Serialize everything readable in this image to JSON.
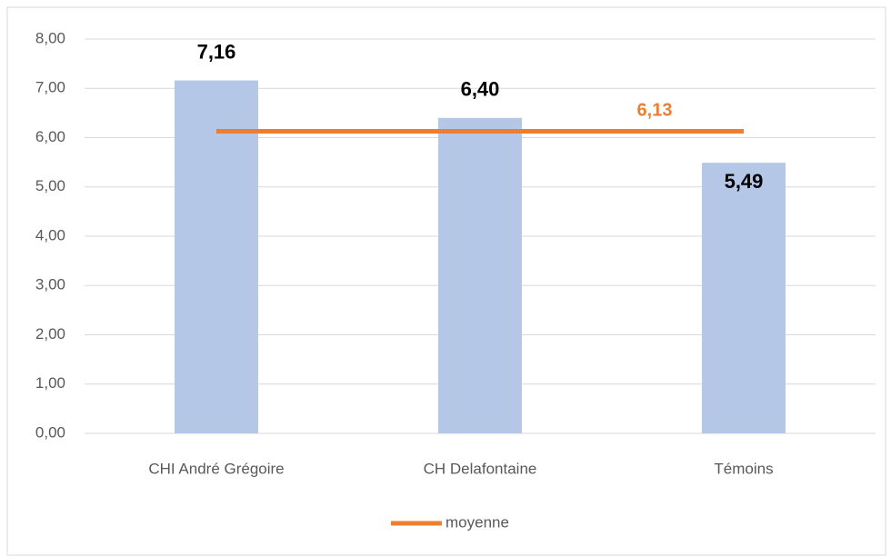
{
  "chart_data": {
    "type": "bar",
    "categories": [
      "CHI André Grégoire",
      "CH Delafontaine",
      "Témoins"
    ],
    "values": [
      7.16,
      6.4,
      5.49
    ],
    "value_labels": [
      "7,16",
      "6,40",
      "5,49"
    ],
    "color": "#b4c7e7",
    "series": [
      {
        "name": "moyenne",
        "type": "line",
        "color": "#ed7d31",
        "values": [
          6.13,
          6.13,
          6.13
        ],
        "value_labels": [
          null,
          null,
          "6,13"
        ]
      }
    ],
    "ylim": [
      0,
      8
    ],
    "yticks": [
      {
        "value": 0,
        "label": "0,00"
      },
      {
        "value": 1,
        "label": "1,00"
      },
      {
        "value": 2,
        "label": "2,00"
      },
      {
        "value": 3,
        "label": "3,00"
      },
      {
        "value": 4,
        "label": "4,00"
      },
      {
        "value": 5,
        "label": "5,00"
      },
      {
        "value": 6,
        "label": "6,00"
      },
      {
        "value": 7,
        "label": "7,00"
      },
      {
        "value": 8,
        "label": "8,00"
      }
    ],
    "grid": true,
    "legend": "bottom"
  }
}
